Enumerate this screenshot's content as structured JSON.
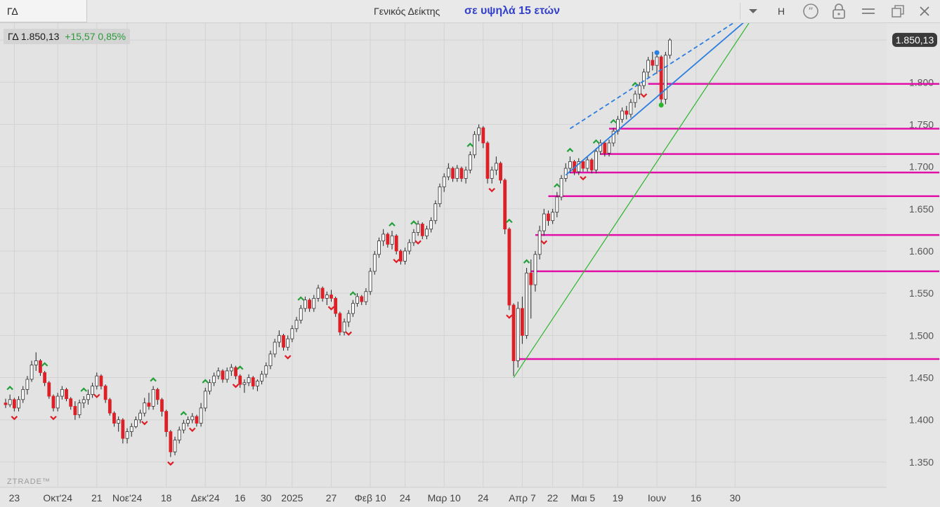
{
  "window": {
    "symbol_tab": "ΓΔ",
    "center_title": "Γενικός Δείκτης",
    "headline": "σε υψηλά 15 ετών",
    "period_button": "H"
  },
  "quote": {
    "symbol": "ΓΔ",
    "last": "1.850,13",
    "change": "+15,57 0,85%"
  },
  "watermark": "ZTRADE™",
  "colors": {
    "up": "#ffffff",
    "down": "#dd2027",
    "green": "#22a13a",
    "magenta": "#e10fa8",
    "blue": "#2b7ee0",
    "trend_green": "#2cb52c"
  },
  "chart_data": {
    "type": "candlestick",
    "title": "",
    "ylim": [
      1320,
      1870
    ],
    "y_ticks": [
      {
        "v": 1350,
        "label": "1.350"
      },
      {
        "v": 1400,
        "label": "1.400"
      },
      {
        "v": 1450,
        "label": "1.450"
      },
      {
        "v": 1500,
        "label": "1.500"
      },
      {
        "v": 1550,
        "label": "1.550"
      },
      {
        "v": 1600,
        "label": "1.600"
      },
      {
        "v": 1650,
        "label": "1.650"
      },
      {
        "v": 1700,
        "label": "1.700"
      },
      {
        "v": 1750,
        "label": "1.750"
      },
      {
        "v": 1800,
        "label": "1.800"
      },
      {
        "v": 1850,
        "label": "1.850"
      }
    ],
    "last_price": {
      "v": 1850.13,
      "label": "1.850,13"
    },
    "x_ticks": [
      {
        "i": 2,
        "label": "23"
      },
      {
        "i": 12,
        "label": "Οκτ'24"
      },
      {
        "i": 21,
        "label": "21"
      },
      {
        "i": 28,
        "label": "Νοε'24"
      },
      {
        "i": 37,
        "label": "18"
      },
      {
        "i": 46,
        "label": "Δεκ'24"
      },
      {
        "i": 54,
        "label": "16"
      },
      {
        "i": 60,
        "label": "30"
      },
      {
        "i": 66,
        "label": "2025"
      },
      {
        "i": 75,
        "label": "27"
      },
      {
        "i": 84,
        "label": "Φεβ 10"
      },
      {
        "i": 92,
        "label": "24"
      },
      {
        "i": 101,
        "label": "Μαρ 10"
      },
      {
        "i": 110,
        "label": "24"
      },
      {
        "i": 119,
        "label": "Απρ 7"
      },
      {
        "i": 126,
        "label": "22"
      },
      {
        "i": 133,
        "label": "Μαι 5"
      },
      {
        "i": 141,
        "label": "19"
      },
      {
        "i": 150,
        "label": "Ιουν"
      },
      {
        "i": 159,
        "label": "16"
      },
      {
        "i": 168,
        "label": "30"
      }
    ],
    "ohlc": [
      [
        1420,
        1425,
        1414,
        1418
      ],
      [
        1418,
        1430,
        1415,
        1424
      ],
      [
        1424,
        1426,
        1410,
        1414
      ],
      [
        1414,
        1428,
        1410,
        1424
      ],
      [
        1424,
        1440,
        1420,
        1436
      ],
      [
        1436,
        1452,
        1430,
        1448
      ],
      [
        1448,
        1470,
        1445,
        1465
      ],
      [
        1465,
        1480,
        1458,
        1470
      ],
      [
        1470,
        1472,
        1452,
        1456
      ],
      [
        1456,
        1458,
        1440,
        1444
      ],
      [
        1444,
        1446,
        1425,
        1428
      ],
      [
        1428,
        1430,
        1410,
        1414
      ],
      [
        1414,
        1432,
        1410,
        1428
      ],
      [
        1428,
        1440,
        1424,
        1436
      ],
      [
        1436,
        1438,
        1422,
        1425
      ],
      [
        1425,
        1427,
        1412,
        1416
      ],
      [
        1416,
        1422,
        1400,
        1406
      ],
      [
        1406,
        1424,
        1402,
        1420
      ],
      [
        1420,
        1428,
        1414,
        1424
      ],
      [
        1424,
        1436,
        1418,
        1430
      ],
      [
        1430,
        1444,
        1426,
        1440
      ],
      [
        1440,
        1456,
        1436,
        1452
      ],
      [
        1452,
        1454,
        1436,
        1440
      ],
      [
        1440,
        1442,
        1420,
        1424
      ],
      [
        1424,
        1426,
        1405,
        1408
      ],
      [
        1408,
        1410,
        1392,
        1396
      ],
      [
        1396,
        1404,
        1386,
        1400
      ],
      [
        1400,
        1402,
        1372,
        1378
      ],
      [
        1378,
        1390,
        1372,
        1386
      ],
      [
        1386,
        1396,
        1380,
        1392
      ],
      [
        1392,
        1404,
        1390,
        1400
      ],
      [
        1400,
        1412,
        1396,
        1408
      ],
      [
        1408,
        1426,
        1404,
        1420
      ],
      [
        1420,
        1432,
        1412,
        1416
      ],
      [
        1416,
        1440,
        1412,
        1436
      ],
      [
        1436,
        1438,
        1418,
        1424
      ],
      [
        1424,
        1426,
        1404,
        1410
      ],
      [
        1410,
        1412,
        1380,
        1386
      ],
      [
        1386,
        1388,
        1356,
        1362
      ],
      [
        1362,
        1380,
        1358,
        1376
      ],
      [
        1376,
        1392,
        1372,
        1388
      ],
      [
        1388,
        1400,
        1384,
        1396
      ],
      [
        1396,
        1404,
        1392,
        1400
      ],
      [
        1400,
        1408,
        1396,
        1404
      ],
      [
        1404,
        1406,
        1392,
        1396
      ],
      [
        1396,
        1420,
        1392,
        1414
      ],
      [
        1414,
        1438,
        1410,
        1434
      ],
      [
        1434,
        1448,
        1430,
        1444
      ],
      [
        1444,
        1456,
        1440,
        1452
      ],
      [
        1452,
        1462,
        1448,
        1458
      ],
      [
        1458,
        1460,
        1444,
        1448
      ],
      [
        1448,
        1462,
        1444,
        1458
      ],
      [
        1458,
        1466,
        1452,
        1462
      ],
      [
        1462,
        1464,
        1448,
        1452
      ],
      [
        1452,
        1454,
        1438,
        1442
      ],
      [
        1442,
        1448,
        1432,
        1444
      ],
      [
        1444,
        1454,
        1440,
        1450
      ],
      [
        1450,
        1452,
        1436,
        1440
      ],
      [
        1440,
        1448,
        1434,
        1446
      ],
      [
        1446,
        1458,
        1442,
        1454
      ],
      [
        1454,
        1468,
        1450,
        1464
      ],
      [
        1464,
        1482,
        1460,
        1478
      ],
      [
        1478,
        1496,
        1474,
        1492
      ],
      [
        1492,
        1506,
        1486,
        1500
      ],
      [
        1500,
        1502,
        1482,
        1486
      ],
      [
        1486,
        1500,
        1482,
        1496
      ],
      [
        1496,
        1512,
        1492,
        1508
      ],
      [
        1508,
        1522,
        1504,
        1518
      ],
      [
        1518,
        1536,
        1514,
        1532
      ],
      [
        1532,
        1546,
        1528,
        1542
      ],
      [
        1542,
        1544,
        1528,
        1532
      ],
      [
        1532,
        1548,
        1528,
        1544
      ],
      [
        1544,
        1560,
        1540,
        1556
      ],
      [
        1556,
        1558,
        1540,
        1544
      ],
      [
        1544,
        1552,
        1536,
        1548
      ],
      [
        1548,
        1554,
        1540,
        1544
      ],
      [
        1544,
        1546,
        1522,
        1526
      ],
      [
        1526,
        1528,
        1500,
        1504
      ],
      [
        1504,
        1520,
        1500,
        1516
      ],
      [
        1516,
        1530,
        1510,
        1526
      ],
      [
        1526,
        1542,
        1522,
        1538
      ],
      [
        1538,
        1550,
        1534,
        1546
      ],
      [
        1546,
        1548,
        1536,
        1540
      ],
      [
        1540,
        1556,
        1536,
        1552
      ],
      [
        1552,
        1580,
        1548,
        1576
      ],
      [
        1576,
        1600,
        1572,
        1596
      ],
      [
        1596,
        1616,
        1592,
        1612
      ],
      [
        1612,
        1626,
        1606,
        1620
      ],
      [
        1620,
        1622,
        1604,
        1608
      ],
      [
        1608,
        1624,
        1602,
        1618
      ],
      [
        1618,
        1620,
        1596,
        1600
      ],
      [
        1600,
        1602,
        1584,
        1588
      ],
      [
        1588,
        1604,
        1584,
        1600
      ],
      [
        1600,
        1614,
        1596,
        1610
      ],
      [
        1610,
        1626,
        1606,
        1622
      ],
      [
        1622,
        1636,
        1618,
        1632
      ],
      [
        1632,
        1634,
        1614,
        1618
      ],
      [
        1618,
        1630,
        1614,
        1626
      ],
      [
        1626,
        1640,
        1622,
        1636
      ],
      [
        1636,
        1660,
        1632,
        1656
      ],
      [
        1656,
        1680,
        1652,
        1676
      ],
      [
        1676,
        1692,
        1670,
        1688
      ],
      [
        1688,
        1704,
        1684,
        1698
      ],
      [
        1698,
        1700,
        1682,
        1686
      ],
      [
        1686,
        1702,
        1682,
        1698
      ],
      [
        1698,
        1700,
        1682,
        1686
      ],
      [
        1686,
        1700,
        1680,
        1696
      ],
      [
        1696,
        1718,
        1692,
        1714
      ],
      [
        1714,
        1742,
        1710,
        1738
      ],
      [
        1738,
        1750,
        1730,
        1746
      ],
      [
        1746,
        1748,
        1722,
        1728
      ],
      [
        1728,
        1730,
        1680,
        1686
      ],
      [
        1686,
        1700,
        1680,
        1696
      ],
      [
        1696,
        1712,
        1690,
        1704
      ],
      [
        1704,
        1706,
        1680,
        1684
      ],
      [
        1684,
        1686,
        1620,
        1626
      ],
      [
        1626,
        1628,
        1530,
        1536
      ],
      [
        1536,
        1538,
        1452,
        1470
      ],
      [
        1470,
        1540,
        1462,
        1532
      ],
      [
        1532,
        1546,
        1490,
        1500
      ],
      [
        1500,
        1580,
        1496,
        1574
      ],
      [
        1574,
        1590,
        1520,
        1560
      ],
      [
        1560,
        1600,
        1552,
        1596
      ],
      [
        1596,
        1630,
        1590,
        1624
      ],
      [
        1624,
        1650,
        1618,
        1644
      ],
      [
        1644,
        1648,
        1630,
        1636
      ],
      [
        1636,
        1650,
        1632,
        1646
      ],
      [
        1646,
        1670,
        1640,
        1664
      ],
      [
        1664,
        1690,
        1660,
        1686
      ],
      [
        1686,
        1704,
        1682,
        1698
      ],
      [
        1698,
        1712,
        1692,
        1706
      ],
      [
        1706,
        1708,
        1690,
        1694
      ],
      [
        1694,
        1710,
        1690,
        1706
      ],
      [
        1706,
        1708,
        1694,
        1698
      ],
      [
        1698,
        1712,
        1694,
        1708
      ],
      [
        1708,
        1710,
        1692,
        1696
      ],
      [
        1696,
        1722,
        1692,
        1718
      ],
      [
        1718,
        1732,
        1714,
        1728
      ],
      [
        1728,
        1730,
        1712,
        1716
      ],
      [
        1716,
        1732,
        1712,
        1728
      ],
      [
        1728,
        1746,
        1724,
        1742
      ],
      [
        1742,
        1760,
        1738,
        1756
      ],
      [
        1756,
        1770,
        1752,
        1766
      ],
      [
        1766,
        1772,
        1756,
        1762
      ],
      [
        1762,
        1780,
        1758,
        1776
      ],
      [
        1776,
        1790,
        1770,
        1786
      ],
      [
        1786,
        1800,
        1780,
        1796
      ],
      [
        1796,
        1816,
        1792,
        1812
      ],
      [
        1812,
        1830,
        1806,
        1826
      ],
      [
        1826,
        1836,
        1814,
        1820
      ],
      [
        1820,
        1834,
        1810,
        1830
      ],
      [
        1830,
        1832,
        1770,
        1780
      ],
      [
        1780,
        1836,
        1774,
        1832
      ],
      [
        1832,
        1852,
        1828,
        1850
      ]
    ],
    "pivot_highs": [
      1,
      9,
      18,
      34,
      41,
      46,
      54,
      68,
      80,
      89,
      94,
      107,
      116,
      120,
      127,
      130,
      136,
      140,
      145
    ],
    "pivot_lows": [
      2,
      11,
      21,
      32,
      38,
      43,
      53,
      65,
      75,
      79,
      90,
      95,
      112,
      116,
      124,
      133,
      147
    ],
    "support_levels": [
      {
        "v": 1798,
        "from": 148
      },
      {
        "v": 1745,
        "from": 139
      },
      {
        "v": 1715,
        "from": 137
      },
      {
        "v": 1693,
        "from": 130
      },
      {
        "v": 1665,
        "from": 125
      },
      {
        "v": 1619,
        "from": 122
      },
      {
        "v": 1576,
        "from": 121
      },
      {
        "v": 1472,
        "from": 118
      }
    ],
    "trendlines": [
      {
        "color": "green",
        "from": [
          117,
          1450
        ],
        "to": [
          173,
          1884
        ]
      },
      {
        "color": "blue",
        "from": [
          129,
          1690
        ],
        "to": [
          173,
          1884
        ]
      },
      {
        "color": "blue",
        "dashed": true,
        "from": [
          130,
          1745
        ],
        "to": [
          173,
          1888
        ]
      }
    ]
  }
}
